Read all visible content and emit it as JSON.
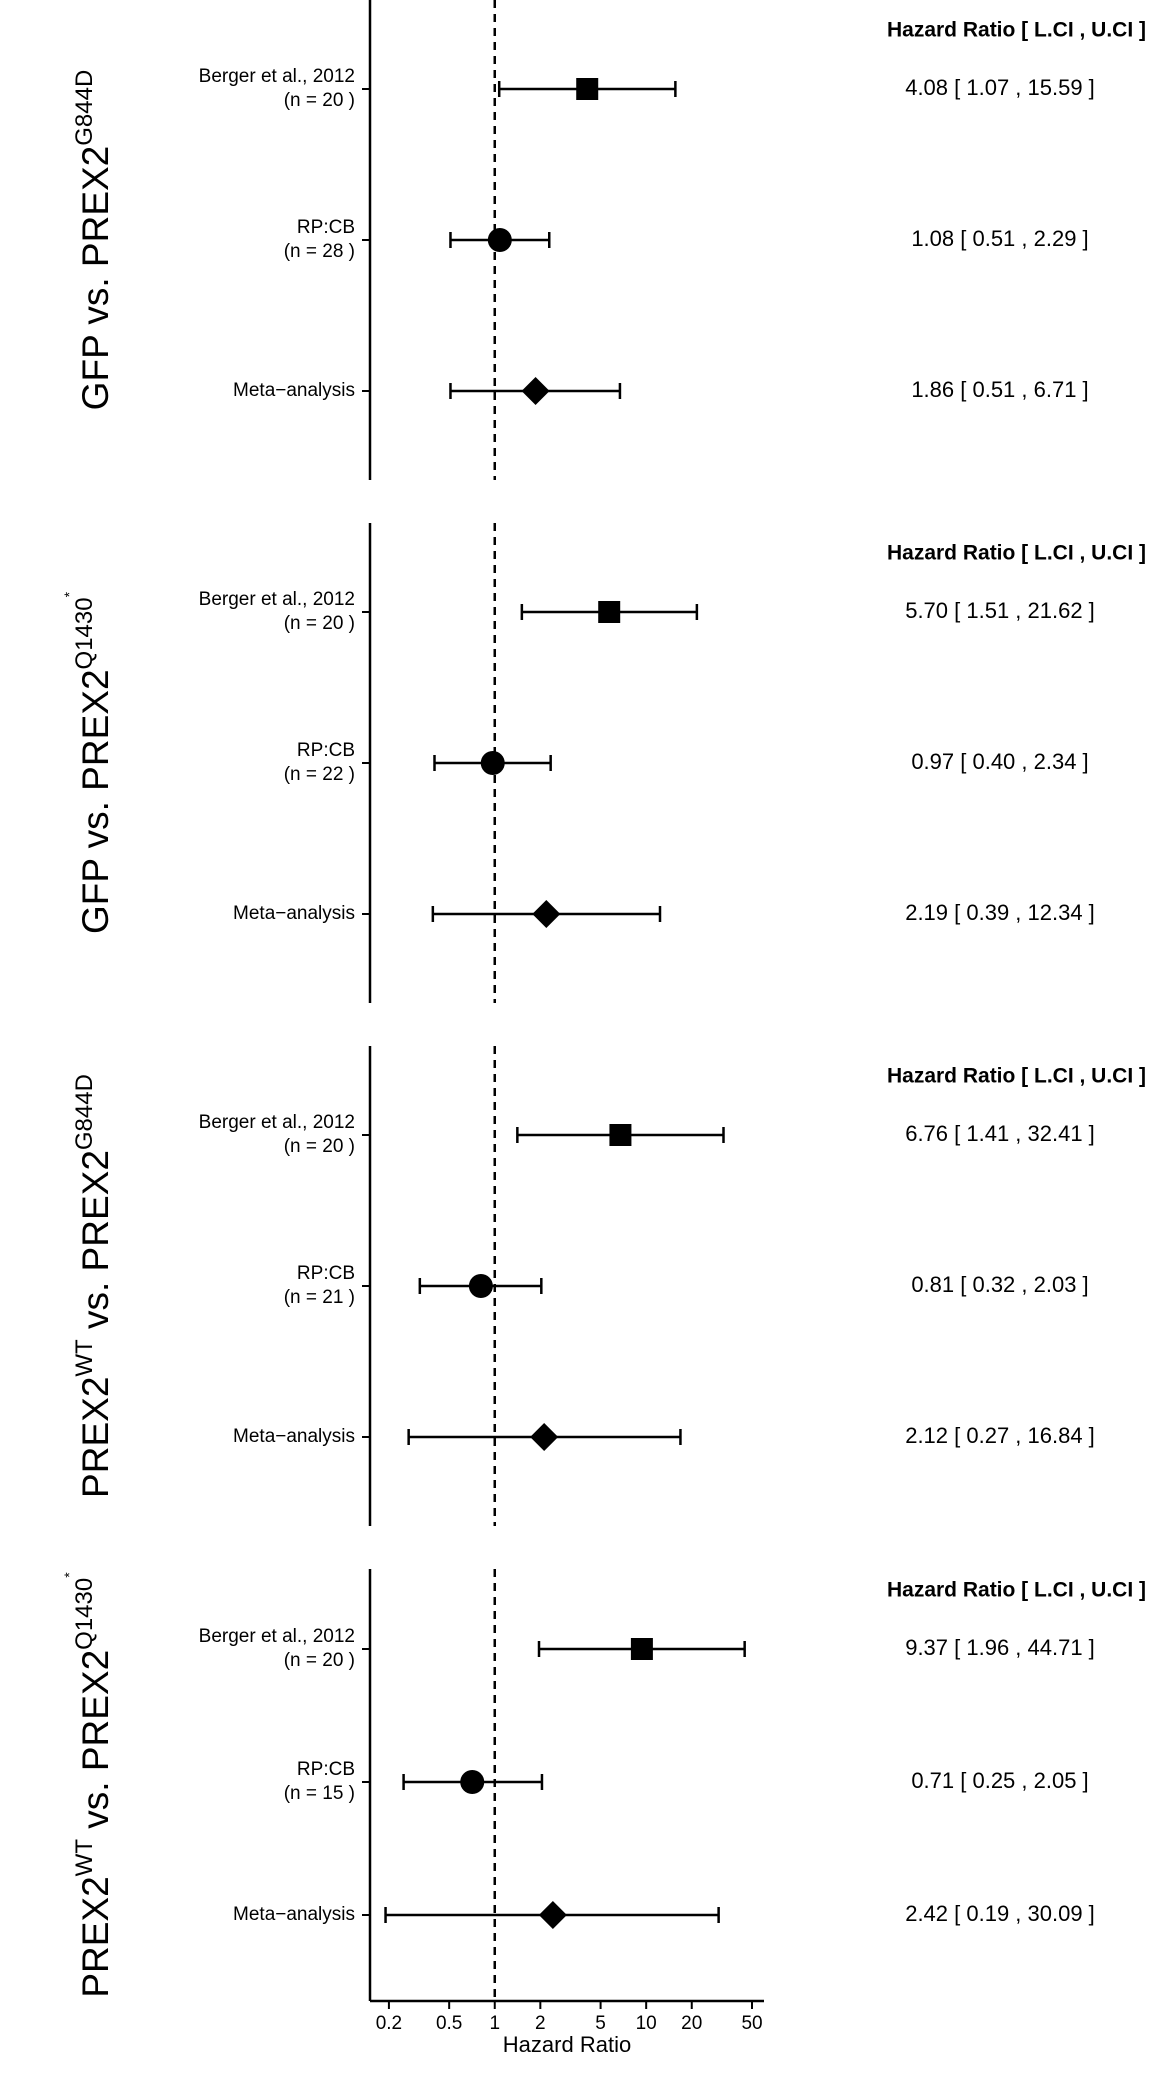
{
  "chart_data": [
    {
      "type": "forest",
      "ylabel": [
        {
          "text": "GFP vs. PREX2"
        },
        {
          "sup": "G844D"
        }
      ],
      "header": "Hazard Ratio [ L.CI , U.CI ]",
      "studies": [
        "Berger et al., 2012",
        "RP:CB",
        "Meta−analysis"
      ],
      "n_labels": [
        "(n = 20 )",
        "(n = 28 )",
        null
      ],
      "shapes": [
        "square",
        "circle",
        "diamond"
      ],
      "hr": [
        4.08,
        1.08,
        1.86
      ],
      "lci": [
        1.07,
        0.51,
        0.51
      ],
      "uci": [
        15.59,
        2.29,
        6.71
      ],
      "value_labels": [
        "4.08 [ 1.07 , 15.59 ]",
        "1.08 [ 0.51 , 2.29 ]",
        "1.86 [ 0.51 , 6.71 ]"
      ],
      "xlim": [
        0.15,
        60
      ],
      "log_x": true,
      "refline": 1
    },
    {
      "type": "forest",
      "ylabel": [
        {
          "text": "GFP vs. PREX2"
        },
        {
          "sup": "Q1430"
        },
        {
          "sup2": "*"
        }
      ],
      "header": "Hazard Ratio [ L.CI , U.CI ]",
      "studies": [
        "Berger et al., 2012",
        "RP:CB",
        "Meta−analysis"
      ],
      "n_labels": [
        "(n = 20 )",
        "(n = 22 )",
        null
      ],
      "shapes": [
        "square",
        "circle",
        "diamond"
      ],
      "hr": [
        5.7,
        0.97,
        2.19
      ],
      "lci": [
        1.51,
        0.4,
        0.39
      ],
      "uci": [
        21.62,
        2.34,
        12.34
      ],
      "value_labels": [
        "5.70 [ 1.51 , 21.62 ]",
        "0.97 [ 0.40 , 2.34 ]",
        "2.19 [ 0.39 , 12.34 ]"
      ],
      "xlim": [
        0.15,
        60
      ],
      "log_x": true,
      "refline": 1
    },
    {
      "type": "forest",
      "ylabel": [
        {
          "text": "PREX2"
        },
        {
          "sup": "WT"
        },
        {
          "text": " vs. PREX2"
        },
        {
          "sup": "G844D"
        }
      ],
      "header": "Hazard Ratio [ L.CI , U.CI ]",
      "studies": [
        "Berger et al., 2012",
        "RP:CB",
        "Meta−analysis"
      ],
      "n_labels": [
        "(n = 20 )",
        "(n = 21 )",
        null
      ],
      "shapes": [
        "square",
        "circle",
        "diamond"
      ],
      "hr": [
        6.76,
        0.81,
        2.12
      ],
      "lci": [
        1.41,
        0.32,
        0.27
      ],
      "uci": [
        32.41,
        2.03,
        16.84
      ],
      "value_labels": [
        "6.76 [ 1.41 , 32.41 ]",
        "0.81 [ 0.32 , 2.03 ]",
        "2.12 [ 0.27 , 16.84 ]"
      ],
      "xlim": [
        0.15,
        60
      ],
      "log_x": true,
      "refline": 1
    },
    {
      "type": "forest",
      "ylabel": [
        {
          "text": "PREX2"
        },
        {
          "sup": "WT"
        },
        {
          "text": " vs. PREX2"
        },
        {
          "sup": "Q1430"
        },
        {
          "sup2": "*"
        }
      ],
      "header": "Hazard Ratio [ L.CI , U.CI ]",
      "studies": [
        "Berger et al., 2012",
        "RP:CB",
        "Meta−analysis"
      ],
      "n_labels": [
        "(n = 20 )",
        "(n = 15 )",
        null
      ],
      "shapes": [
        "square",
        "circle",
        "diamond"
      ],
      "hr": [
        9.37,
        0.71,
        2.42
      ],
      "lci": [
        1.96,
        0.25,
        0.19
      ],
      "uci": [
        44.71,
        2.05,
        30.09
      ],
      "value_labels": [
        "9.37 [ 1.96 , 44.71 ]",
        "0.71 [ 0.25 , 2.05 ]",
        "2.42 [ 0.19 , 30.09 ]"
      ],
      "xlim": [
        0.15,
        60
      ],
      "log_x": true,
      "refline": 1,
      "xticks": [
        0.2,
        0.5,
        1,
        2,
        5,
        10,
        20,
        50
      ],
      "xlabel": "Hazard Ratio"
    }
  ]
}
